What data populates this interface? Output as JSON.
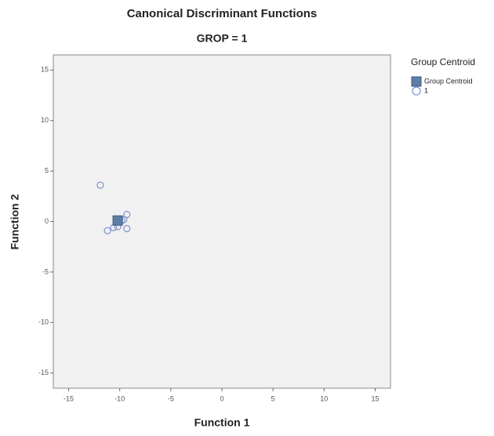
{
  "chart_data": {
    "type": "scatter",
    "title": "Canonical Discriminant Functions",
    "subtitle": "GROP = 1",
    "x_label": "Function 1",
    "y_label": "Function 2",
    "legend_title": "Group Centroid",
    "xlim": [
      -16.5,
      16.5
    ],
    "ylim": [
      -16.5,
      16.5
    ],
    "xticks": [
      -15,
      -10,
      -5,
      0,
      5,
      10,
      15
    ],
    "yticks": [
      -15,
      -10,
      -5,
      0,
      5,
      10,
      15
    ],
    "series": [
      {
        "name": "Group Centroid",
        "color": "#5d7ea6",
        "marker": "square",
        "x": [
          -10.2
        ],
        "values": [
          0.1
        ]
      },
      {
        "name": "1",
        "color": "#7f93cf",
        "marker": "circle",
        "x": [
          -11.9,
          -9.3,
          -9.6,
          -9.3,
          -11.2,
          -10.6,
          -10.2,
          -9.8
        ],
        "values": [
          3.6,
          0.7,
          0.2,
          -0.7,
          -0.9,
          -0.6,
          -0.5,
          0.1
        ]
      }
    ]
  }
}
